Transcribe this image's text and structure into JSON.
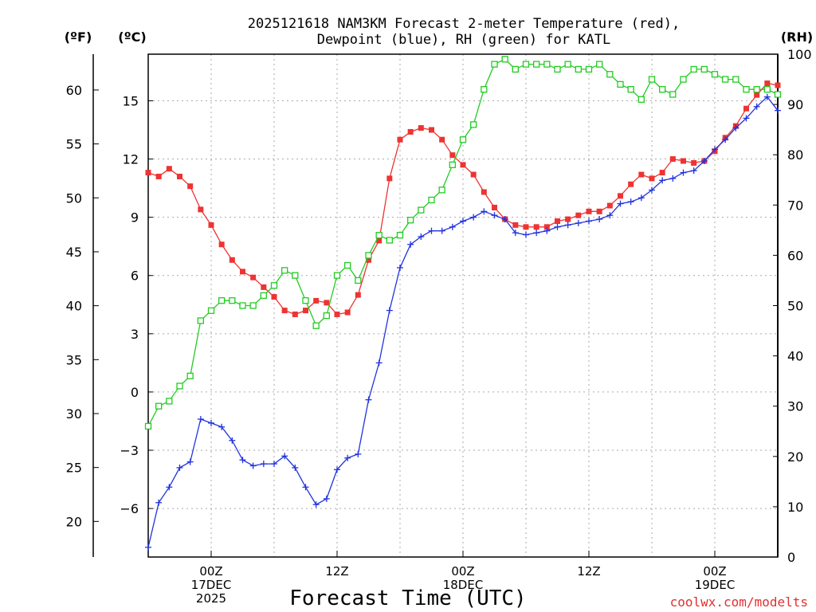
{
  "chart_data": {
    "type": "line",
    "title_lines": [
      "2025121618 NAM3KM Forecast 2-meter Temperature (red),",
      "Dewpoint (blue), RH (green) for KATL"
    ],
    "xlabel": "Forecast Time (UTC)",
    "credit": "coolwx.com/modelts",
    "credit_color": "#e03030",
    "axes": {
      "left_outer": {
        "label": "(ºF)",
        "ticks": [
          20,
          25,
          30,
          35,
          40,
          45,
          50,
          55,
          60
        ]
      },
      "left_inner": {
        "label": "(ºC)",
        "ticks": [
          "−6",
          "−3",
          "0",
          "3",
          "6",
          "9",
          "12",
          "15"
        ],
        "tick_values": [
          -6,
          -3,
          0,
          3,
          6,
          9,
          12,
          15
        ],
        "ylim": [
          -8.5,
          17.4
        ]
      },
      "right": {
        "label": "(RH)",
        "ticks": [
          0,
          10,
          20,
          30,
          40,
          50,
          60,
          70,
          80,
          90,
          100
        ],
        "ylim": [
          0,
          100
        ]
      }
    },
    "x_range_hours": [
      0,
      60
    ],
    "x_ticks": [
      {
        "hour": 6,
        "lines": [
          "00Z",
          "17DEC",
          "2025"
        ]
      },
      {
        "hour": 18,
        "lines": [
          "12Z"
        ]
      },
      {
        "hour": 30,
        "lines": [
          "00Z",
          "18DEC"
        ]
      },
      {
        "hour": 42,
        "lines": [
          "12Z"
        ]
      },
      {
        "hour": 54,
        "lines": [
          "00Z",
          "19DEC"
        ]
      }
    ],
    "grid_hours": [
      6,
      12,
      18,
      24,
      30,
      36,
      42,
      48,
      54
    ],
    "grid_celsius": [
      -6,
      -3,
      0,
      3,
      6,
      9,
      12,
      15
    ],
    "series": [
      {
        "name": "2-meter Temperature",
        "unit": "C",
        "color": "#ee3333",
        "marker": "filled-square",
        "values": [
          11.3,
          11.1,
          11.5,
          11.1,
          10.6,
          9.4,
          8.6,
          7.6,
          6.8,
          6.2,
          5.9,
          5.4,
          4.9,
          4.2,
          4.0,
          4.2,
          4.7,
          4.6,
          4.0,
          4.1,
          5.0,
          6.8,
          7.8,
          11.0,
          13.0,
          13.4,
          13.6,
          13.5,
          13.0,
          12.2,
          11.7,
          11.2,
          10.3,
          9.5,
          8.9,
          8.6,
          8.5,
          8.5,
          8.5,
          8.8,
          8.9,
          9.1,
          9.3,
          9.3,
          9.6,
          10.1,
          10.7,
          11.2,
          11.0,
          11.3,
          12.0,
          11.9,
          11.8,
          11.9,
          12.4,
          13.1,
          13.7,
          14.6,
          15.3,
          15.9,
          15.8
        ]
      },
      {
        "name": "Dewpoint",
        "unit": "C",
        "color": "#2233dd",
        "marker": "plus",
        "values": [
          -8.0,
          -5.7,
          -4.9,
          -3.9,
          -3.6,
          -1.4,
          -1.6,
          -1.8,
          -2.5,
          -3.5,
          -3.8,
          -3.7,
          -3.7,
          -3.3,
          -3.9,
          -4.9,
          -5.8,
          -5.5,
          -4.0,
          -3.4,
          -3.2,
          -0.4,
          1.5,
          4.2,
          6.4,
          7.6,
          8.0,
          8.3,
          8.3,
          8.5,
          8.8,
          9.0,
          9.3,
          9.1,
          8.9,
          8.2,
          8.1,
          8.2,
          8.3,
          8.5,
          8.6,
          8.7,
          8.8,
          8.9,
          9.1,
          9.7,
          9.8,
          10.0,
          10.4,
          10.9,
          11.0,
          11.3,
          11.4,
          11.9,
          12.5,
          13.0,
          13.6,
          14.1,
          14.7,
          15.2,
          14.5
        ]
      },
      {
        "name": "RH",
        "unit": "%",
        "color": "#22cc22",
        "marker": "open-square",
        "values": [
          26,
          30,
          31,
          34,
          36,
          47,
          49,
          51,
          51,
          50,
          50,
          52,
          54,
          57,
          56,
          51,
          46,
          48,
          56,
          58,
          55,
          60,
          64,
          63,
          64,
          67,
          69,
          71,
          73,
          78,
          83,
          86,
          93,
          98,
          99,
          97,
          98,
          98,
          98,
          97,
          98,
          97,
          97,
          98,
          96,
          94,
          93,
          91,
          95,
          93,
          92,
          95,
          97,
          97,
          96,
          95,
          95,
          93,
          93,
          93,
          92
        ]
      }
    ]
  }
}
